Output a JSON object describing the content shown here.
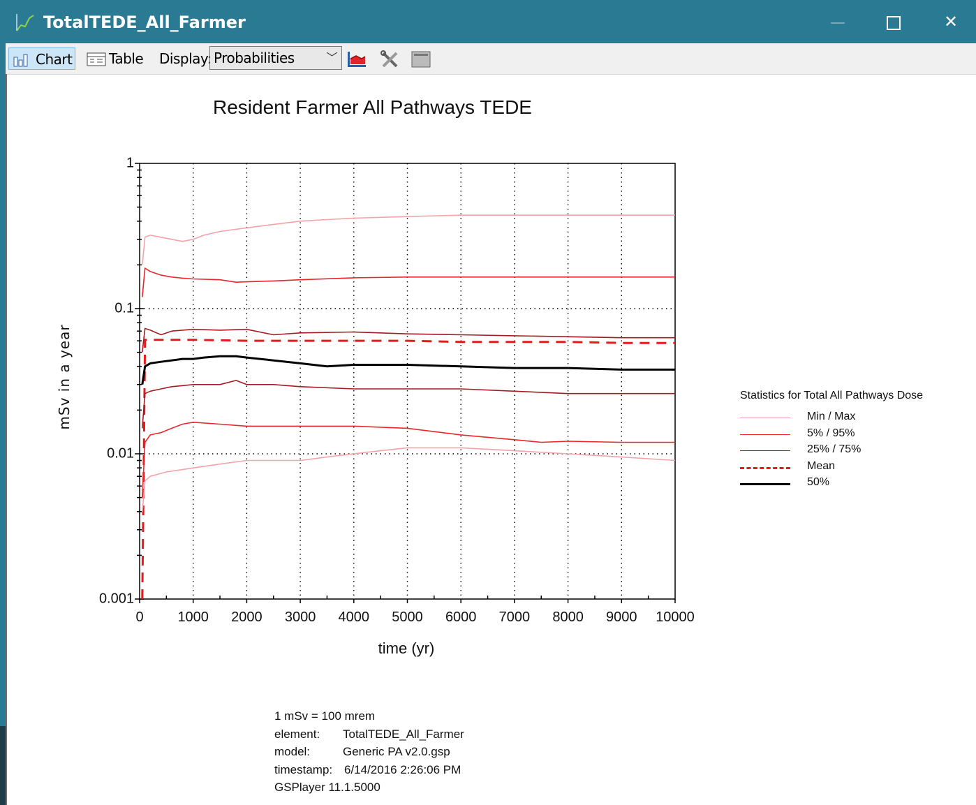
{
  "window": {
    "title": "TotalTEDE_All_Farmer",
    "controls": [
      "minimize",
      "maximize",
      "close"
    ]
  },
  "toolbar": {
    "chart_label": "Chart",
    "table_label": "Table",
    "display_label": "Display:",
    "display_value": "Probabilities",
    "icons": [
      "chart-icon",
      "table-icon",
      "chart-style-icon",
      "tools-icon",
      "screen-icon"
    ]
  },
  "chart_data": {
    "type": "line",
    "title": "Resident Farmer All Pathways TEDE",
    "xlabel": "time (yr)",
    "ylabel": "mSv in a year",
    "xlim": [
      0,
      10000
    ],
    "ylim": [
      0.001,
      1
    ],
    "yscale": "log",
    "xticks": [
      "0",
      "1000",
      "2000",
      "3000",
      "4000",
      "5000",
      "6000",
      "7000",
      "8000",
      "9000",
      "10000"
    ],
    "yticks": [
      "1",
      "0.1",
      "0.01",
      "0.001"
    ],
    "grid": "dotted",
    "legend_title": "Statistics for Total All Pathways Dose",
    "legend_position": "right",
    "legend": [
      {
        "label": "Min / Max",
        "color": "#f4a3a8",
        "style": "solid"
      },
      {
        "label": "5% / 95%",
        "color": "#e8262b",
        "style": "solid"
      },
      {
        "label": "25% / 75%",
        "color": "#a31c22",
        "style": "solid"
      },
      {
        "label": "Mean",
        "color": "#e31b1b",
        "style": "dashed"
      },
      {
        "label": "50%",
        "color": "#000000",
        "style": "solid"
      }
    ],
    "series": [
      {
        "name": "Max",
        "color": "#f4a3a8",
        "width": 1.6,
        "x": [
          50,
          100,
          200,
          400,
          600,
          800,
          1000,
          1200,
          1500,
          2000,
          2500,
          3000,
          3500,
          4000,
          5000,
          6000,
          7000,
          8000,
          9000,
          10000
        ],
        "y": [
          0.2,
          0.31,
          0.32,
          0.31,
          0.3,
          0.29,
          0.3,
          0.32,
          0.34,
          0.36,
          0.38,
          0.4,
          0.41,
          0.42,
          0.43,
          0.44,
          0.44,
          0.44,
          0.44,
          0.44
        ]
      },
      {
        "name": "95%",
        "color": "#e8262b",
        "width": 1.6,
        "x": [
          50,
          100,
          200,
          400,
          600,
          800,
          1000,
          1500,
          1800,
          2000,
          2500,
          3000,
          4000,
          5000,
          6000,
          7000,
          8000,
          9000,
          10000
        ],
        "y": [
          0.12,
          0.19,
          0.18,
          0.17,
          0.165,
          0.162,
          0.16,
          0.158,
          0.152,
          0.153,
          0.155,
          0.158,
          0.163,
          0.165,
          0.165,
          0.165,
          0.165,
          0.165,
          0.165
        ]
      },
      {
        "name": "75%",
        "color": "#a31c22",
        "width": 1.6,
        "x": [
          50,
          100,
          200,
          400,
          600,
          1000,
          1500,
          2000,
          2500,
          3000,
          4000,
          5000,
          6000,
          7000,
          8000,
          9000,
          10000
        ],
        "y": [
          0.05,
          0.073,
          0.071,
          0.066,
          0.07,
          0.072,
          0.071,
          0.072,
          0.066,
          0.068,
          0.069,
          0.067,
          0.066,
          0.065,
          0.064,
          0.063,
          0.063
        ]
      },
      {
        "name": "Mean",
        "color": "#e31b1b",
        "width": 3,
        "dash": "14,10",
        "x": [
          50,
          80,
          100,
          200,
          1000,
          2000,
          3000,
          4000,
          5000,
          6000,
          7000,
          8000,
          9000,
          10000
        ],
        "y": [
          0.001,
          0.01,
          0.061,
          0.061,
          0.061,
          0.06,
          0.06,
          0.06,
          0.06,
          0.059,
          0.059,
          0.059,
          0.058,
          0.058
        ]
      },
      {
        "name": "50%",
        "color": "#000000",
        "width": 3,
        "x": [
          50,
          100,
          200,
          400,
          800,
          1000,
          1200,
          1500,
          1800,
          2000,
          2500,
          3000,
          3500,
          4000,
          5000,
          6000,
          7000,
          8000,
          9000,
          10000
        ],
        "y": [
          0.03,
          0.04,
          0.042,
          0.043,
          0.045,
          0.045,
          0.046,
          0.047,
          0.047,
          0.046,
          0.044,
          0.042,
          0.04,
          0.041,
          0.041,
          0.04,
          0.039,
          0.039,
          0.038,
          0.038
        ]
      },
      {
        "name": "25%",
        "color": "#a31c22",
        "width": 1.6,
        "x": [
          50,
          100,
          200,
          400,
          600,
          1000,
          1500,
          1800,
          2000,
          2500,
          3000,
          4000,
          5000,
          6000,
          7000,
          8000,
          9000,
          10000
        ],
        "y": [
          0.015,
          0.026,
          0.027,
          0.028,
          0.029,
          0.03,
          0.03,
          0.032,
          0.03,
          0.03,
          0.029,
          0.028,
          0.028,
          0.028,
          0.027,
          0.026,
          0.026,
          0.026
        ]
      },
      {
        "name": "5%",
        "color": "#e8262b",
        "width": 1.6,
        "x": [
          50,
          100,
          200,
          400,
          600,
          800,
          1000,
          1500,
          2000,
          3000,
          4000,
          5000,
          6000,
          7000,
          7500,
          8000,
          9000,
          10000
        ],
        "y": [
          0.005,
          0.012,
          0.0135,
          0.014,
          0.015,
          0.016,
          0.0165,
          0.016,
          0.0155,
          0.0155,
          0.0155,
          0.015,
          0.0135,
          0.0125,
          0.012,
          0.0122,
          0.012,
          0.012
        ]
      },
      {
        "name": "Min",
        "color": "#f4a3a8",
        "width": 1.6,
        "x": [
          50,
          100,
          200,
          500,
          1000,
          1500,
          2000,
          2500,
          3000,
          3500,
          4000,
          4500,
          5000,
          6000,
          7000,
          8000,
          9000,
          10000
        ],
        "y": [
          0.004,
          0.0065,
          0.007,
          0.0075,
          0.008,
          0.0085,
          0.009,
          0.009,
          0.009,
          0.0095,
          0.01,
          0.0105,
          0.011,
          0.011,
          0.0105,
          0.01,
          0.0095,
          0.009
        ]
      }
    ]
  },
  "footer": {
    "line1": "1 mSv = 100 mrem",
    "element_label": "element:",
    "element_value": "TotalTEDE_All_Farmer",
    "model_label": "model:",
    "model_value": "Generic PA v2.0.gsp",
    "timestamp_label": "timestamp:",
    "timestamp_value": "6/14/2016 2:26:06 PM",
    "version": "GSPlayer 11.1.5000"
  }
}
